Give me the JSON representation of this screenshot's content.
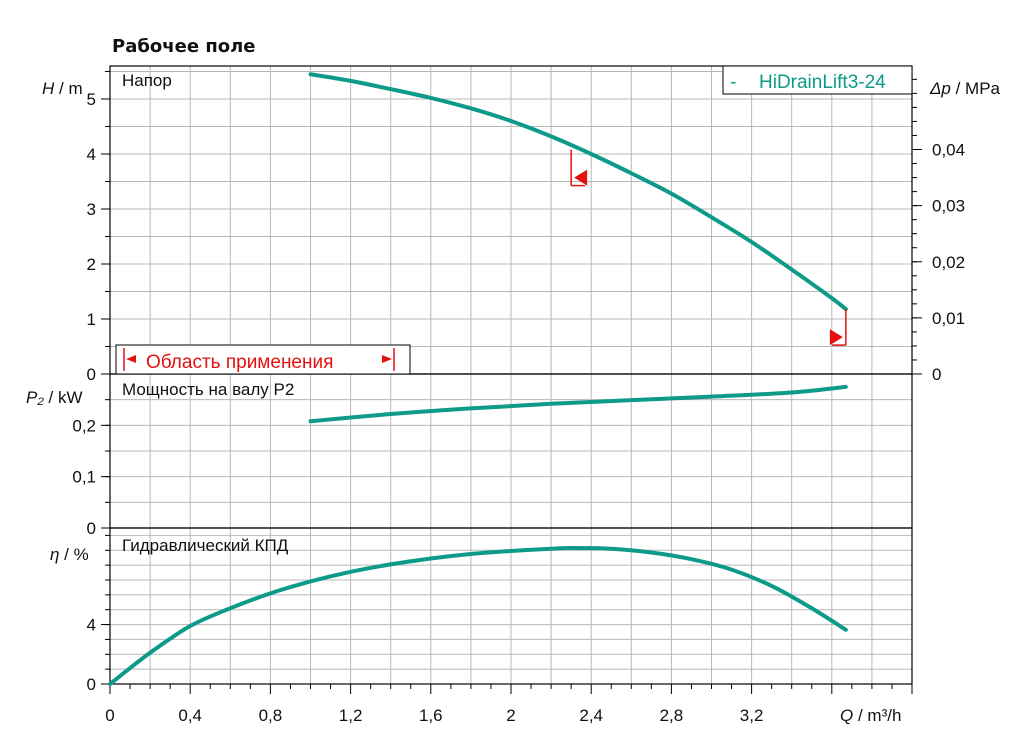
{
  "title": "Рабочее поле",
  "colors": {
    "curve": "#0e9a88",
    "marker": "#e3110f",
    "grid": "#b8b8b8"
  },
  "legend": {
    "dash": "-",
    "label": "HiDrainLift3-24"
  },
  "range_label": "Область применения",
  "chart_data": [
    {
      "type": "line",
      "panel": "head",
      "panel_label": "Напор",
      "ylabel_symbol": "H",
      "ylabel_unit": "m",
      "y2label_symbol": "Δp",
      "y2label_unit": "MPa",
      "xlim": [
        0,
        4
      ],
      "ylim": [
        0,
        5.6
      ],
      "yticks": [
        "0",
        "1",
        "2",
        "3",
        "4",
        "5"
      ],
      "y2ticks": [
        "0",
        "0,01",
        "0,02",
        "0,03",
        "0,04"
      ],
      "y2ticks_values": [
        0,
        0.01,
        0.02,
        0.03,
        0.04
      ],
      "series": [
        {
          "x": [
            1.0,
            1.2,
            1.4,
            1.6,
            1.8,
            2.0,
            2.2,
            2.4,
            2.6,
            2.8,
            3.0,
            3.2,
            3.4,
            3.6,
            3.67
          ],
          "y": [
            5.45,
            5.33,
            5.18,
            5.02,
            4.83,
            4.6,
            4.32,
            4.0,
            3.65,
            3.28,
            2.85,
            2.4,
            1.9,
            1.38,
            1.18
          ]
        }
      ],
      "markers": [
        {
          "x": 2.3,
          "y": 4.08,
          "direction": "left"
        },
        {
          "x": 3.67,
          "y": 1.18,
          "direction": "right"
        }
      ]
    },
    {
      "type": "line",
      "panel": "power",
      "panel_label": "Мощность на валу P2",
      "ylabel_symbol": "P₂",
      "ylabel_unit": "kW",
      "ylim": [
        0,
        0.3
      ],
      "yticks": [
        "0",
        "0,1",
        "0,2"
      ],
      "series": [
        {
          "x": [
            1.0,
            1.4,
            1.8,
            2.2,
            2.6,
            3.0,
            3.4,
            3.67
          ],
          "y": [
            0.208,
            0.222,
            0.233,
            0.242,
            0.249,
            0.256,
            0.264,
            0.275
          ]
        }
      ]
    },
    {
      "type": "line",
      "panel": "efficiency",
      "panel_label": "Гидравлический КПД",
      "ylabel_symbol": "η",
      "ylabel_unit": "%",
      "ylim": [
        0,
        10.5
      ],
      "yticks": [
        "0",
        "4"
      ],
      "xlabel_symbol": "Q",
      "xlabel_unit": "m³/h",
      "xticks": [
        "0",
        "0,4",
        "0,8",
        "1,2",
        "1,6",
        "2",
        "2,4",
        "2,8",
        "3,2"
      ],
      "series": [
        {
          "x": [
            0,
            0.2,
            0.4,
            0.6,
            0.8,
            1.0,
            1.2,
            1.4,
            1.6,
            1.8,
            2.0,
            2.2,
            2.3,
            2.5,
            2.7,
            2.9,
            3.1,
            3.3,
            3.5,
            3.67
          ],
          "y": [
            0,
            2.1,
            3.9,
            5.1,
            6.1,
            6.9,
            7.55,
            8.05,
            8.45,
            8.75,
            8.95,
            9.1,
            9.15,
            9.1,
            8.85,
            8.4,
            7.7,
            6.6,
            5.1,
            3.65
          ]
        }
      ]
    }
  ]
}
